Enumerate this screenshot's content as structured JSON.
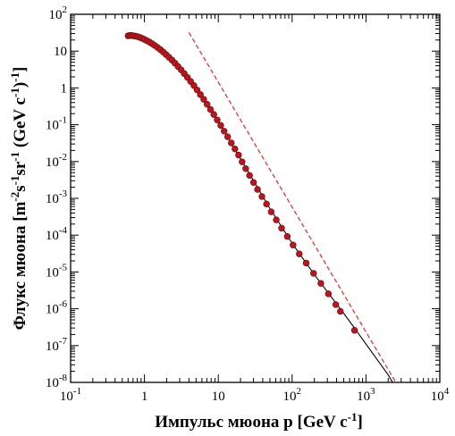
{
  "chart_data": {
    "type": "scatter",
    "title": "",
    "xlabel": "Импульс мюона p [GeV c",
    "xlabel_sup": "-1",
    "xlabel_end": "]",
    "ylabel_parts": [
      {
        "t": "Флукс мюона [m",
        "sup": false
      },
      {
        "t": "-2",
        "sup": true
      },
      {
        "t": "s",
        "sup": false
      },
      {
        "t": "-1",
        "sup": true
      },
      {
        "t": "sr",
        "sup": false
      },
      {
        "t": "-1",
        "sup": true
      },
      {
        "t": " (GeV c",
        "sup": false
      },
      {
        "t": "-1",
        "sup": true
      },
      {
        "t": ")",
        "sup": false
      },
      {
        "t": "-1",
        "sup": true
      },
      {
        "t": "]",
        "sup": false
      }
    ],
    "xscale": "log",
    "yscale": "log",
    "xlim": [
      0.1,
      10000
    ],
    "ylim": [
      1e-08,
      100
    ],
    "grid": false,
    "legend": "none",
    "x_ticks": [
      {
        "v": 0.1,
        "base": "10",
        "exp": "-1"
      },
      {
        "v": 1,
        "base": "1",
        "exp": ""
      },
      {
        "v": 10,
        "base": "10",
        "exp": ""
      },
      {
        "v": 100,
        "base": "10",
        "exp": "2"
      },
      {
        "v": 1000,
        "base": "10",
        "exp": "3"
      },
      {
        "v": 10000,
        "base": "10",
        "exp": "4"
      }
    ],
    "y_ticks": [
      {
        "v": 1e-08,
        "base": "10",
        "exp": "-8"
      },
      {
        "v": 1e-07,
        "base": "10",
        "exp": "-7"
      },
      {
        "v": 1e-06,
        "base": "10",
        "exp": "-6"
      },
      {
        "v": 1e-05,
        "base": "10",
        "exp": "-5"
      },
      {
        "v": 0.0001,
        "base": "10",
        "exp": "-4"
      },
      {
        "v": 0.001,
        "base": "10",
        "exp": "-3"
      },
      {
        "v": 0.01,
        "base": "10",
        "exp": "-2"
      },
      {
        "v": 0.1,
        "base": "10",
        "exp": "-1"
      },
      {
        "v": 1,
        "base": "1",
        "exp": ""
      },
      {
        "v": 10,
        "base": "10",
        "exp": ""
      },
      {
        "v": 100,
        "base": "10",
        "exp": "2"
      }
    ],
    "series": [
      {
        "kind": "points",
        "color": "#c0141c",
        "points": [
          [
            0.6,
            26
          ],
          [
            0.63,
            26.5
          ],
          [
            0.67,
            26.5
          ],
          [
            0.71,
            26
          ],
          [
            0.76,
            25.5
          ],
          [
            0.81,
            24.7
          ],
          [
            0.87,
            23.5
          ],
          [
            0.93,
            22.2
          ],
          [
            1.0,
            20.8
          ],
          [
            1.08,
            19.2
          ],
          [
            1.17,
            17.6
          ],
          [
            1.27,
            15.9
          ],
          [
            1.38,
            14.2
          ],
          [
            1.5,
            12.6
          ],
          [
            1.64,
            11.0
          ],
          [
            1.79,
            9.5
          ],
          [
            1.96,
            8.1
          ],
          [
            2.15,
            6.8
          ],
          [
            2.36,
            5.7
          ],
          [
            2.59,
            4.7
          ],
          [
            2.85,
            3.8
          ],
          [
            3.14,
            3.1
          ],
          [
            3.46,
            2.45
          ],
          [
            3.82,
            1.93
          ],
          [
            4.22,
            1.5
          ],
          [
            4.67,
            1.16
          ],
          [
            5.17,
            0.88
          ],
          [
            5.73,
            0.66
          ],
          [
            6.35,
            0.49
          ],
          [
            7.05,
            0.36
          ],
          [
            7.83,
            0.26
          ],
          [
            8.7,
            0.19
          ],
          [
            9.67,
            0.135
          ],
          [
            10.8,
            0.096
          ],
          [
            12.0,
            0.067
          ],
          [
            13.4,
            0.047
          ],
          [
            15.0,
            0.032
          ],
          [
            16.8,
            0.022
          ],
          [
            18.8,
            0.015
          ],
          [
            21.0,
            0.0098
          ],
          [
            23.5,
            0.0064
          ],
          [
            26.5,
            0.0042
          ],
          [
            30.0,
            0.0027
          ],
          [
            34.0,
            0.00175
          ],
          [
            39.0,
            0.00112
          ],
          [
            45.0,
            0.0007
          ],
          [
            52.0,
            0.00043
          ],
          [
            61.0,
            0.00026
          ],
          [
            72.0,
            0.000155
          ],
          [
            86.0,
            9.2e-05
          ],
          [
            103.0,
            5.4e-05
          ],
          [
            125.0,
            3.1e-05
          ],
          [
            155.0,
            1.75e-05
          ],
          [
            195.0,
            9.2e-06
          ],
          [
            245.0,
            4.9e-06
          ],
          [
            310.0,
            2.55e-06
          ],
          [
            390.0,
            1.3e-06
          ],
          [
            450.0,
            8.5e-07
          ],
          [
            700.0,
            2.6e-07
          ]
        ]
      },
      {
        "kind": "line",
        "style": "solid",
        "color": "#000000",
        "points": [
          [
            1.5,
            12.6
          ],
          [
            2.0,
            7.8
          ],
          [
            3.0,
            3.3
          ],
          [
            5.0,
            0.95
          ],
          [
            7.0,
            0.37
          ],
          [
            10.0,
            0.12
          ],
          [
            20.0,
            0.012
          ],
          [
            50.0,
            0.00053
          ],
          [
            100.0,
            6e-05
          ],
          [
            200.0,
            8.5e-06
          ],
          [
            300.0,
            2.9e-06
          ],
          [
            500.0,
            7.5e-07
          ],
          [
            700.0,
            3e-07
          ],
          [
            1000.0,
            1.1e-07
          ],
          [
            2000.0,
            1.6e-08
          ],
          [
            4000.0,
            1.5e-09
          ]
        ]
      },
      {
        "kind": "line",
        "style": "dashed",
        "color": "#e8303a",
        "points": [
          [
            4.0,
            32.0
          ],
          [
            5000.0,
            1e-09
          ]
        ]
      }
    ]
  }
}
